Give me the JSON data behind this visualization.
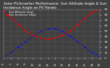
{
  "title": "Solar PV/Inverter Performance  Sun Altitude Angle & Sun Incidence Angle on PV Panels",
  "x_values": [
    6,
    7,
    8,
    9,
    10,
    11,
    12,
    13,
    14,
    15,
    16,
    17,
    18,
    19
  ],
  "sun_altitude": [
    2,
    10,
    20,
    30,
    40,
    49,
    54,
    54,
    49,
    40,
    30,
    20,
    10,
    2
  ],
  "sun_incidence": [
    88,
    75,
    62,
    50,
    42,
    37,
    35,
    37,
    42,
    50,
    62,
    74,
    85,
    90
  ],
  "altitude_color": "#0000ff",
  "incidence_color": "#ff0000",
  "bg_color": "#404040",
  "plot_bg_color": "#404040",
  "grid_color": "#888888",
  "ylim": [
    0,
    90
  ],
  "xlim": [
    6,
    19
  ],
  "x_ticks": [
    6,
    7,
    8,
    9,
    10,
    11,
    12,
    13,
    14,
    15,
    16,
    17,
    18,
    19
  ],
  "y_ticks": [
    0,
    10,
    20,
    30,
    40,
    50,
    60,
    70,
    80,
    90
  ],
  "title_fontsize": 3.8,
  "tick_fontsize": 3.0,
  "legend_fontsize": 2.8,
  "text_color": "#ffffff"
}
